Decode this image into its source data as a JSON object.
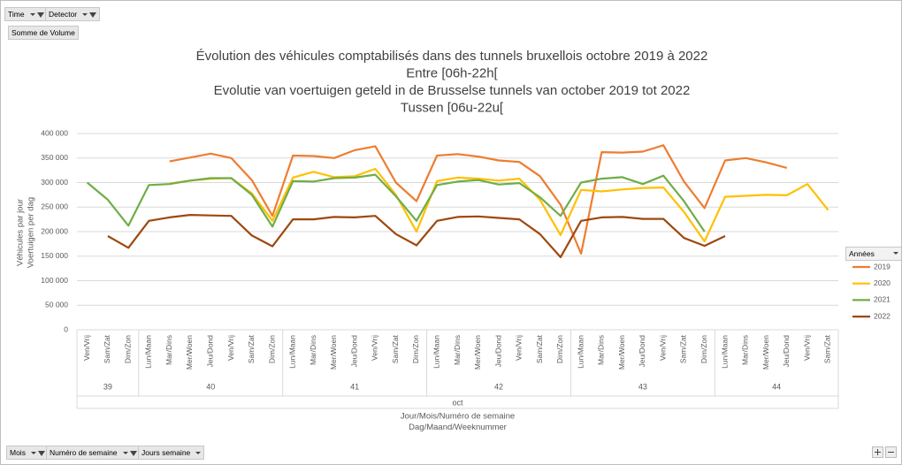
{
  "pivot_buttons": {
    "top": [
      "Time",
      "Detector"
    ],
    "value": "Somme de Volume",
    "bottom": [
      "Mois",
      "Numéro de semaine",
      "Jours semaine"
    ]
  },
  "chart_data": {
    "type": "line",
    "title": [
      "Évolution des véhicules comptabilisés dans des tunnels bruxellois octobre 2019 à 2022",
      "Entre [06h-22h[",
      "Evolutie van voertuigen geteld in de Brusselse tunnels van october 2019 tot 2022",
      "Tussen [06u-22u["
    ],
    "y_label": [
      "Véhicules par jour",
      "Voertuigen per dag"
    ],
    "x_label": [
      "Jour/Mois/Numéro de semaine",
      "Dag/Maand/Weeknummer"
    ],
    "month": "oct",
    "groups": [
      {
        "label": "39",
        "categories": [
          "Ven/Vrij",
          "Sam/Zat",
          "Dim/Zon"
        ]
      },
      {
        "label": "40",
        "categories": [
          "Lun/Maan",
          "Mar/Dins",
          "Mer/Woen",
          "Jeu/Dond",
          "Ven/Vrij",
          "Sam/Zat",
          "Dim/Zon"
        ]
      },
      {
        "label": "41",
        "categories": [
          "Lun/Maan",
          "Mar/Dins",
          "Mer/Woen",
          "Jeu/Dond",
          "Ven/Vrij",
          "Sam/Zat",
          "Dim/Zon"
        ]
      },
      {
        "label": "42",
        "categories": [
          "Lun/Maan",
          "Mar/Dins",
          "Mer/Woen",
          "Jeu/Dond",
          "Ven/Vrij",
          "Sam/Zat",
          "Dim/Zon"
        ]
      },
      {
        "label": "43",
        "categories": [
          "Lun/Maan",
          "Mar/Dins",
          "Mer/Woen",
          "Jeu/Dond",
          "Ven/Vrij",
          "Sam/Zat",
          "Dim/Zon"
        ]
      },
      {
        "label": "44",
        "categories": [
          "Lun/Maan",
          "Mar/Dins",
          "Mer/Woen",
          "Jeu/Dond",
          "Ven/Vrij",
          "Sam/Zat"
        ]
      }
    ],
    "legend_title": "Années",
    "legend_position": "right",
    "grid": true,
    "ylim": [
      0,
      400000
    ],
    "yticks": [
      0,
      {
        "value": 50000,
        "label": "50 000"
      },
      {
        "value": 100000,
        "label": "100 000"
      },
      {
        "value": 150000,
        "label": "150 000"
      },
      {
        "value": 200000,
        "label": "200 000"
      },
      {
        "value": 250000,
        "label": "250 000"
      },
      {
        "value": 300000,
        "label": "300 000"
      },
      {
        "value": 350000,
        "label": "350 000"
      },
      {
        "value": 400000,
        "label": "400 000"
      }
    ],
    "series": [
      {
        "name": "2019",
        "color": "#ed7d31",
        "values": [
          null,
          null,
          null,
          null,
          343000,
          351000,
          359000,
          350000,
          305000,
          232000,
          355000,
          354000,
          350000,
          366000,
          374000,
          300000,
          262000,
          355000,
          358000,
          353000,
          345000,
          342000,
          313000,
          255000,
          155000,
          362000,
          361000,
          363000,
          376000,
          302000,
          248000,
          345000,
          350000,
          341000,
          330000,
          null,
          null
        ]
      },
      {
        "name": "2020",
        "color": "#ffc000",
        "values": [
          null,
          null,
          null,
          null,
          298000,
          304000,
          308000,
          309000,
          278000,
          222000,
          310000,
          322000,
          311000,
          313000,
          328000,
          275000,
          200000,
          303000,
          310000,
          308000,
          304000,
          308000,
          265000,
          193000,
          285000,
          282000,
          286000,
          289000,
          290000,
          240000,
          180000,
          271000,
          273000,
          275000,
          274000,
          297000,
          244000
        ]
      },
      {
        "name": "2021",
        "color": "#70ad47",
        "values": [
          300000,
          265000,
          212000,
          295000,
          297000,
          304000,
          309000,
          309000,
          275000,
          210000,
          303000,
          302000,
          309000,
          310000,
          316000,
          272000,
          222000,
          295000,
          302000,
          305000,
          296000,
          299000,
          270000,
          232000,
          300000,
          308000,
          311000,
          297000,
          314000,
          262000,
          200000,
          null,
          null,
          null,
          null,
          null,
          null
        ]
      },
      {
        "name": "2022",
        "color": "#9e480e",
        "values": [
          null,
          191000,
          167000,
          222000,
          229000,
          234000,
          233000,
          232000,
          192000,
          170000,
          225000,
          225000,
          230000,
          229000,
          232000,
          195000,
          172000,
          222000,
          230000,
          231000,
          228000,
          225000,
          195000,
          148000,
          222000,
          229000,
          230000,
          226000,
          226000,
          187000,
          171000,
          191000,
          null,
          null,
          null,
          null,
          null
        ]
      }
    ]
  }
}
